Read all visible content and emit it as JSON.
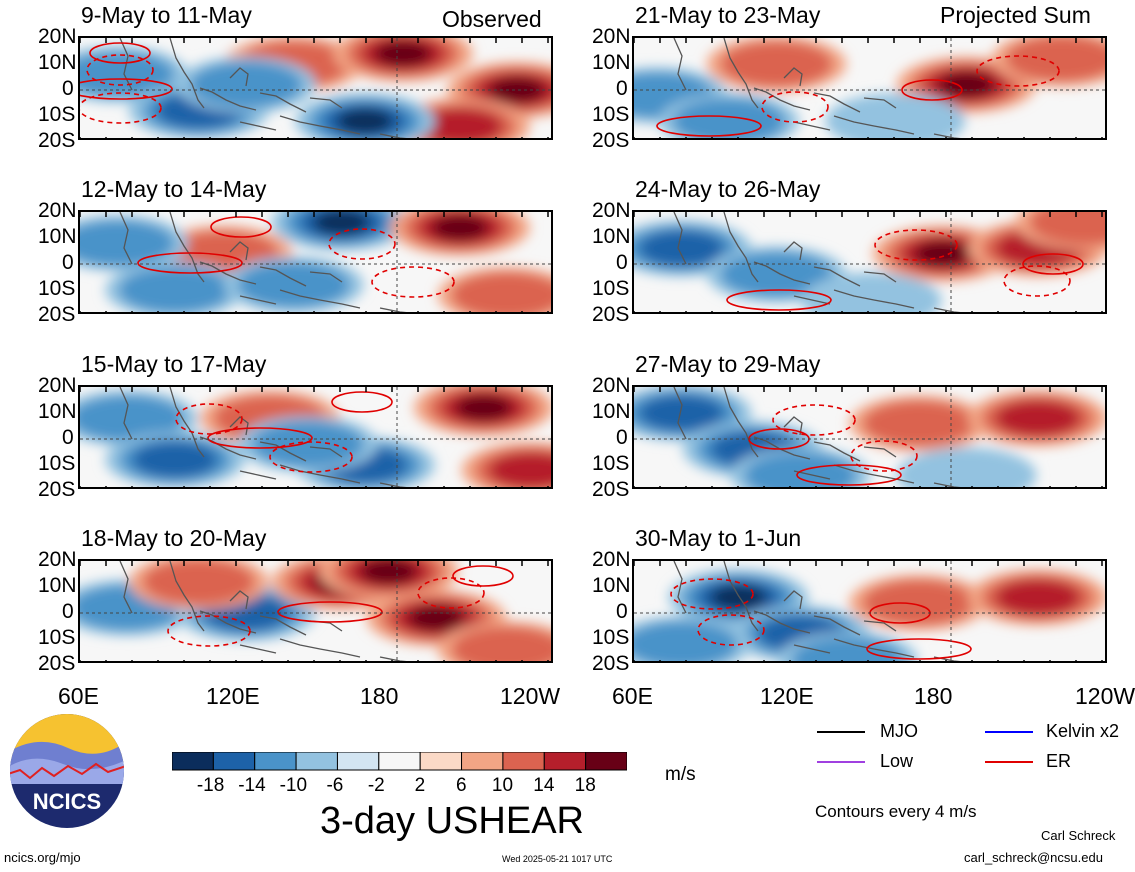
{
  "header": {
    "left_tag": "Observed",
    "right_tag": "Projected Sum"
  },
  "panels": [
    {
      "title": "9-May to 11-May",
      "col": 0,
      "row": 0,
      "pattern": [
        [
          0.08,
          0.35,
          "n",
          0.6
        ],
        [
          0.25,
          0.7,
          "n",
          0.8
        ],
        [
          0.45,
          0.25,
          "p",
          0.6
        ],
        [
          0.68,
          0.15,
          "p",
          0.9
        ],
        [
          0.92,
          0.5,
          "p",
          1.0
        ],
        [
          0.8,
          0.85,
          "p",
          0.8
        ],
        [
          0.6,
          0.8,
          "n",
          0.9
        ],
        [
          0.35,
          0.45,
          "n",
          0.4
        ]
      ]
    },
    {
      "title": "21-May to 23-May",
      "col": 1,
      "row": 0,
      "pattern": [
        [
          0.05,
          0.55,
          "n",
          0.6
        ],
        [
          0.3,
          0.25,
          "p",
          0.5
        ],
        [
          0.7,
          0.45,
          "p",
          1.0
        ],
        [
          0.55,
          0.8,
          "n",
          0.3
        ],
        [
          0.2,
          0.8,
          "n",
          0.4
        ],
        [
          0.9,
          0.2,
          "p",
          0.5
        ]
      ]
    },
    {
      "title": "12-May to 14-May",
      "col": 0,
      "row": 1,
      "pattern": [
        [
          0.55,
          0.1,
          "n",
          1.0
        ],
        [
          0.8,
          0.15,
          "p",
          0.9
        ],
        [
          0.3,
          0.4,
          "p",
          0.5
        ],
        [
          0.2,
          0.75,
          "n",
          0.5
        ],
        [
          0.45,
          0.7,
          "n",
          0.6
        ],
        [
          0.9,
          0.8,
          "p",
          0.5
        ],
        [
          0.08,
          0.3,
          "n",
          0.5
        ]
      ]
    },
    {
      "title": "24-May to 26-May",
      "col": 1,
      "row": 1,
      "pattern": [
        [
          0.1,
          0.35,
          "n",
          0.7
        ],
        [
          0.3,
          0.6,
          "n",
          0.6
        ],
        [
          0.65,
          0.4,
          "p",
          1.0
        ],
        [
          0.85,
          0.35,
          "p",
          0.8
        ],
        [
          0.5,
          0.85,
          "n",
          0.3
        ],
        [
          0.95,
          0.1,
          "p",
          0.6
        ]
      ]
    },
    {
      "title": "15-May to 17-May",
      "col": 0,
      "row": 2,
      "pattern": [
        [
          0.1,
          0.3,
          "n",
          0.6
        ],
        [
          0.2,
          0.7,
          "n",
          0.8
        ],
        [
          0.4,
          0.3,
          "p",
          0.5
        ],
        [
          0.6,
          0.75,
          "n",
          0.7
        ],
        [
          0.85,
          0.2,
          "p",
          0.9
        ],
        [
          0.95,
          0.8,
          "p",
          0.7
        ],
        [
          0.48,
          0.55,
          "n",
          0.4
        ]
      ]
    },
    {
      "title": "27-May to 29-May",
      "col": 1,
      "row": 2,
      "pattern": [
        [
          0.1,
          0.25,
          "n",
          0.8
        ],
        [
          0.25,
          0.6,
          "n",
          0.7
        ],
        [
          0.35,
          0.85,
          "n",
          0.5
        ],
        [
          0.6,
          0.35,
          "p",
          0.6
        ],
        [
          0.85,
          0.3,
          "p",
          0.8
        ],
        [
          0.7,
          0.85,
          "n",
          0.3
        ]
      ]
    },
    {
      "title": "18-May to 20-May",
      "col": 0,
      "row": 3,
      "pattern": [
        [
          0.1,
          0.45,
          "n",
          0.6
        ],
        [
          0.35,
          0.5,
          "n",
          0.8
        ],
        [
          0.55,
          0.2,
          "p",
          1.0
        ],
        [
          0.75,
          0.55,
          "p",
          1.0
        ],
        [
          0.65,
          0.1,
          "p",
          0.9
        ],
        [
          0.25,
          0.2,
          "p",
          0.6
        ],
        [
          0.9,
          0.85,
          "p",
          0.5
        ]
      ]
    },
    {
      "title": "30-May to 1-Jun",
      "col": 1,
      "row": 3,
      "pattern": [
        [
          0.22,
          0.35,
          "n",
          1.0
        ],
        [
          0.35,
          0.7,
          "n",
          0.7
        ],
        [
          0.45,
          0.95,
          "n",
          0.5
        ],
        [
          0.6,
          0.4,
          "p",
          0.5
        ],
        [
          0.85,
          0.35,
          "p",
          0.7
        ],
        [
          0.1,
          0.8,
          "n",
          0.4
        ]
      ]
    }
  ],
  "lat_labels": [
    "20N",
    "10N",
    "0",
    "10S",
    "20S"
  ],
  "lon_labels": [
    "60E",
    "120E",
    "180",
    "120W"
  ],
  "colorbar": {
    "colors": [
      "#0b2d5c",
      "#1d62a8",
      "#4a93c9",
      "#93c2e0",
      "#d3e5f2",
      "#f7f7f7",
      "#fbd9c6",
      "#f2a585",
      "#db6350",
      "#b51f2b",
      "#680016"
    ],
    "ticks": [
      "-18",
      "-14",
      "-10",
      "-6",
      "-2",
      "2",
      "6",
      "10",
      "14",
      "18"
    ],
    "unit": "m/s"
  },
  "title": "3-day USHEAR",
  "legend": [
    {
      "label": "MJO",
      "color": "#000000"
    },
    {
      "label": "Kelvin x2",
      "color": "#0000ff"
    },
    {
      "label": "Low",
      "color": "#a040e0"
    },
    {
      "label": "ER",
      "color": "#e00000"
    }
  ],
  "contour_note": "Contours every 4 m/s",
  "logo_text": "NCICS",
  "credit_name": "Carl Schreck",
  "credit_email": "carl_schreck@ncsu.edu",
  "footer_url": "ncics.org/mjo",
  "timestamp": "Wed 2025-05-21 1017 UTC"
}
